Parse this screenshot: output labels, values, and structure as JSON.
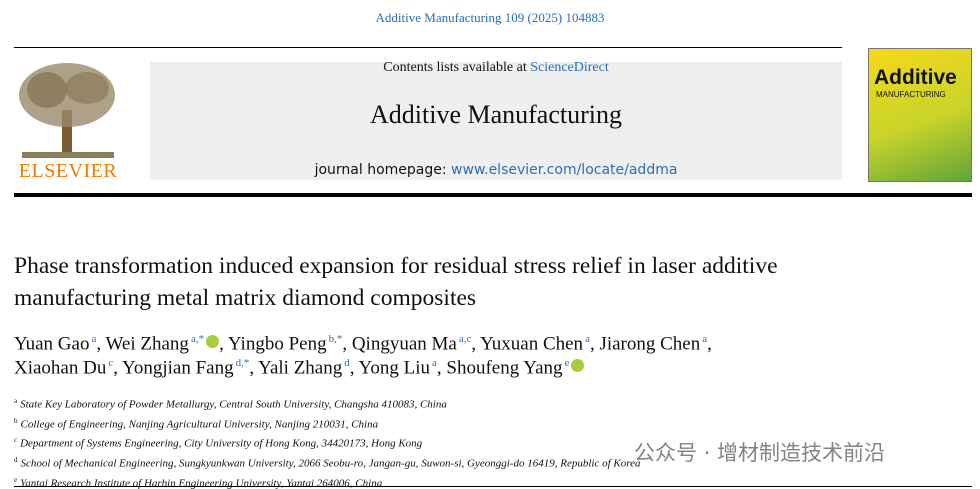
{
  "citation": "Additive Manufacturing 109 (2025) 104883",
  "header": {
    "publisher": "ELSEVIER",
    "contents_prefix": "Contents lists available at",
    "contents_link": "ScienceDirect",
    "journal": "Additive Manufacturing",
    "homepage_prefix": "journal homepage:",
    "homepage_link": "www.elsevier.com/locate/addma"
  },
  "cover": {
    "title": "Additive",
    "subtitle": "MANUFACTURING"
  },
  "article": {
    "title": "Phase transformation induced expansion for residual stress relief in laser additive manufacturing metal matrix diamond composites",
    "author_separator": ",",
    "authors": [
      [
        {
          "name": "Yuan Gao",
          "sup": "a"
        },
        {
          "name": "Wei Zhang",
          "sup": "a,*",
          "orcid": true
        },
        {
          "name": "Yingbo Peng",
          "sup": "b,*"
        },
        {
          "name": "Qingyuan Ma",
          "sup": "a,c"
        },
        {
          "name": "Yuxuan Chen",
          "sup": "a"
        },
        {
          "name": "Jiarong Chen",
          "sup": "a"
        }
      ],
      [
        {
          "name": "Xiaohan Du",
          "sup": "c"
        },
        {
          "name": "Yongjian Fang",
          "sup": "d,*"
        },
        {
          "name": "Yali Zhang",
          "sup": "d"
        },
        {
          "name": "Yong Liu",
          "sup": "a"
        },
        {
          "name": "Shoufeng Yang",
          "sup": "e",
          "orcid": true
        }
      ]
    ],
    "affiliations": [
      {
        "label": "a",
        "text": "State Key Laboratory of Powder Metallurgy, Central South University, Changsha 410083, China"
      },
      {
        "label": "b",
        "text": "College of Engineering, Nanjing Agricultural University, Nanjing 210031, China"
      },
      {
        "label": "c",
        "text": "Department of Systems Engineering, City University of Hong Kong, 34420173, Hong Kong"
      },
      {
        "label": "d",
        "text": "School of Mechanical Engineering, Sungkyunkwan University, 2066 Seobu-ro, Jangan-gu, Suwon-si, Gyeonggi-do 16419, Republic of Korea"
      },
      {
        "label": "e",
        "text": "Yantai Research Institute of Harbin Engineering University, Yantai 264006, China"
      }
    ]
  },
  "watermark": "公众号 · 增材制造技术前沿"
}
